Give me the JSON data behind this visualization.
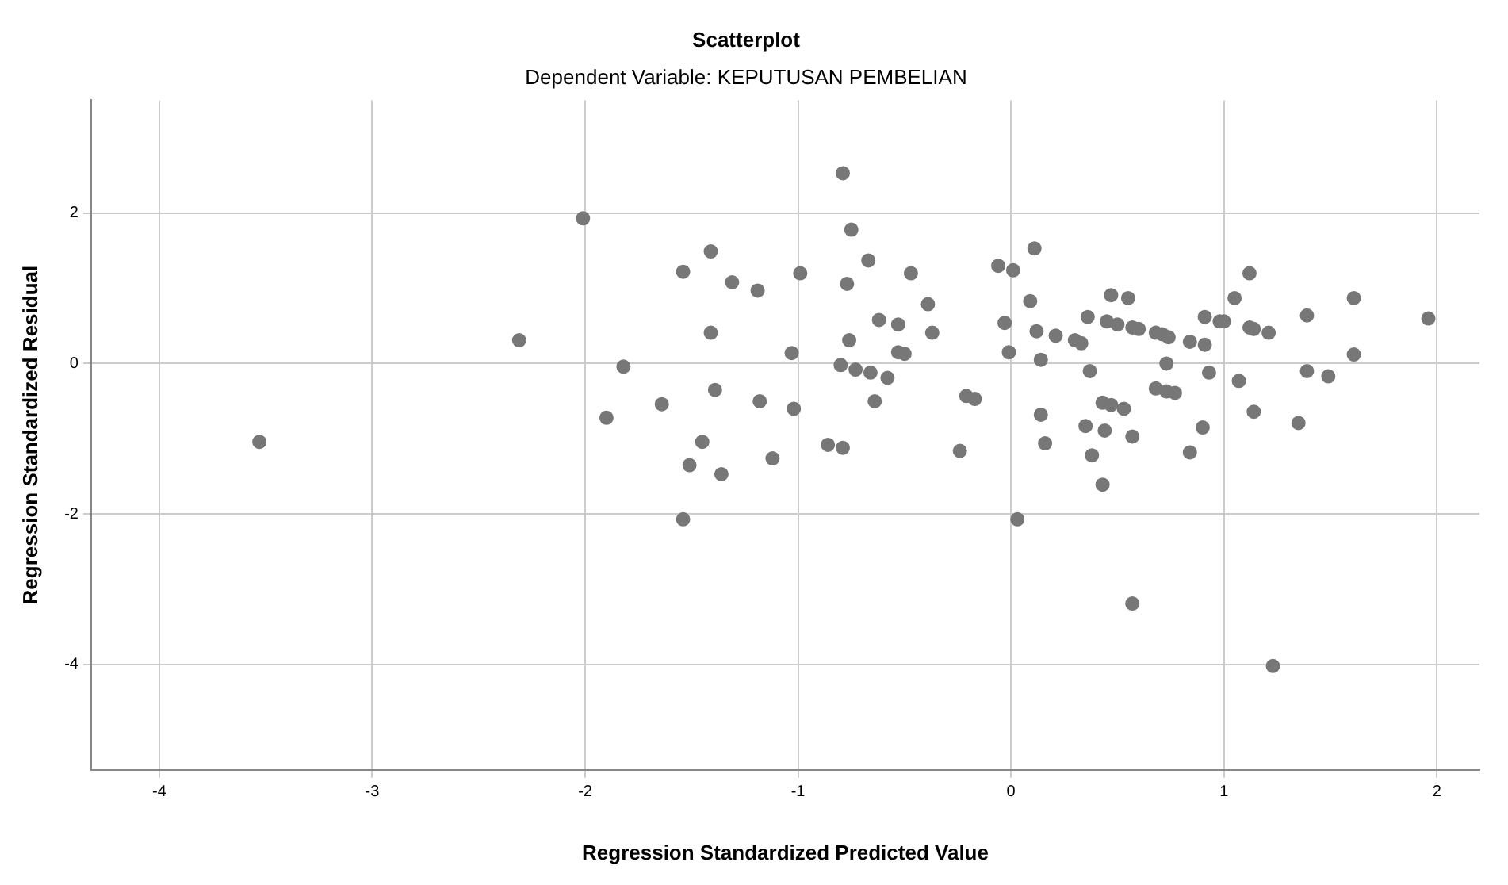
{
  "chart_data": {
    "type": "scatter",
    "title": "Scatterplot",
    "subtitle": "Dependent Variable: KEPUTUSAN PEMBELIAN",
    "xlabel": "Regression Standardized Predicted Value",
    "ylabel": "Regression Standardized Residual",
    "xlim": [
      -4.32,
      2.2
    ],
    "ylim": [
      -5.4,
      3.5
    ],
    "xticks": [
      -4,
      -3,
      -2,
      -1,
      0,
      1,
      2
    ],
    "yticks": [
      -4,
      -2,
      0,
      2
    ],
    "grid": true,
    "legend": false,
    "marker": "circle",
    "series": [
      {
        "color": "#777777",
        "x": [
          -3.53,
          -2.31,
          -2.01,
          -0.79,
          -0.75,
          -1.41,
          -0.67,
          -1.54,
          -0.99,
          -0.47,
          -1.31,
          -0.77,
          -1.19,
          -0.39,
          -0.62,
          -0.53,
          -0.37,
          -1.41,
          -0.76,
          -0.53,
          -0.5,
          -1.03,
          -1.82,
          -0.8,
          -0.73,
          -0.66,
          -0.58,
          -1.39,
          -1.64,
          -1.9,
          -1.18,
          -1.02,
          -0.64,
          -0.21,
          -0.17,
          -1.45,
          -1.51,
          -1.36,
          -1.12,
          -0.86,
          -0.79,
          -0.24,
          -1.54,
          0.03,
          -0.06,
          0.01,
          0.11,
          0.09,
          -0.03,
          0.12,
          -0.01,
          0.14,
          0.21,
          0.3,
          0.33,
          0.36,
          0.37,
          0.47,
          0.55,
          0.45,
          0.5,
          0.57,
          0.6,
          0.68,
          0.71,
          0.74,
          0.84,
          0.91,
          0.91,
          0.98,
          1.0,
          1.05,
          1.12,
          1.12,
          1.14,
          1.21,
          1.39,
          1.61,
          1.96,
          1.61,
          1.39,
          1.49,
          0.73,
          0.93,
          1.07,
          0.68,
          0.73,
          0.77,
          0.14,
          0.16,
          0.35,
          0.44,
          0.43,
          0.47,
          0.53,
          0.57,
          0.38,
          0.43,
          0.84,
          0.9,
          1.14,
          1.35,
          0.57,
          1.23
        ],
        "values": [
          -1.04,
          0.31,
          1.93,
          2.53,
          1.78,
          1.49,
          1.37,
          1.22,
          1.2,
          1.2,
          1.08,
          1.06,
          0.97,
          0.79,
          0.58,
          0.52,
          0.41,
          0.41,
          0.31,
          0.15,
          0.13,
          0.14,
          -0.04,
          -0.02,
          -0.08,
          -0.12,
          -0.19,
          -0.35,
          -0.54,
          -0.72,
          -0.5,
          -0.6,
          -0.5,
          -0.43,
          -0.47,
          -1.04,
          -1.35,
          -1.47,
          -1.26,
          -1.08,
          -1.12,
          -1.16,
          -2.07,
          -2.07,
          1.3,
          1.24,
          1.53,
          0.83,
          0.54,
          0.43,
          0.15,
          0.05,
          0.37,
          0.31,
          0.27,
          0.62,
          -0.1,
          0.91,
          0.87,
          0.56,
          0.52,
          0.48,
          0.46,
          0.41,
          0.39,
          0.35,
          0.29,
          0.25,
          0.62,
          0.56,
          0.56,
          0.87,
          1.2,
          0.48,
          0.46,
          0.41,
          0.64,
          0.87,
          0.6,
          0.12,
          -0.1,
          -0.17,
          0.0,
          -0.12,
          -0.23,
          -0.33,
          -0.37,
          -0.39,
          -0.68,
          -1.06,
          -0.83,
          -0.89,
          -0.52,
          -0.55,
          -0.6,
          -0.97,
          -1.22,
          -1.61,
          -1.18,
          -0.85,
          -0.64,
          -0.79,
          -3.19,
          -4.02
        ]
      }
    ]
  }
}
